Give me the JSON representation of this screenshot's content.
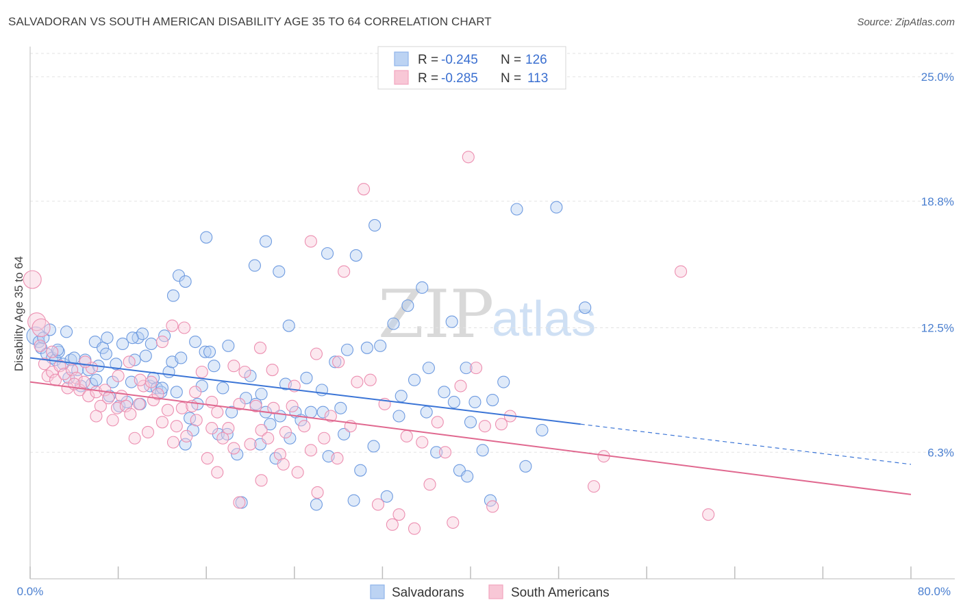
{
  "header": {
    "title": "SALVADORAN VS SOUTH AMERICAN DISABILITY AGE 35 TO 64 CORRELATION CHART",
    "source": "Source: ZipAtlas.com"
  },
  "watermark": {
    "zip": "ZIP",
    "atlas": "atlas"
  },
  "legend": {
    "rows": [
      {
        "r_label": "R =",
        "r_value": "-0.245",
        "n_label": "N =",
        "n_value": "126",
        "color": "#8fb5ea"
      },
      {
        "r_label": "R =",
        "r_value": "-0.285",
        "n_label": "N =",
        "n_value": "113",
        "color": "#f2a5bf"
      }
    ]
  },
  "bottom_legend": {
    "items": [
      {
        "label": "Salvadorans",
        "color": "#8fb5ea"
      },
      {
        "label": "South Americans",
        "color": "#f2a5bf"
      }
    ]
  },
  "chart_data": {
    "type": "scatter",
    "title": "SALVADORAN VS SOUTH AMERICAN DISABILITY AGE 35 TO 64 CORRELATION CHART",
    "xlabel": "",
    "ylabel": "Disability Age 35 to 64",
    "xlim": [
      0,
      80
    ],
    "ylim": [
      0,
      26.5
    ],
    "x_tick_labels": [
      "0.0%",
      "80.0%"
    ],
    "y_ticks": [
      6.3,
      12.5,
      18.8,
      25.0
    ],
    "y_tick_labels": [
      "6.3%",
      "12.5%",
      "18.8%",
      "25.0%"
    ],
    "grid": true,
    "colors": {
      "salvadorans": "#5b8fdc",
      "south_americans": "#e9799f",
      "blue_line": "#3a74d6",
      "pink_line": "#e0688f"
    },
    "series": [
      {
        "name": "Salvadorans",
        "r": -0.245,
        "n": 126,
        "trend": {
          "x0": 0,
          "y0": 11.0,
          "x1": 50,
          "y1": 7.7,
          "dashed_to_x": 80,
          "dashed_to_y": 5.7
        },
        "points": [
          [
            0.5,
            12.1
          ],
          [
            0.8,
            11.8
          ],
          [
            1.0,
            11.5
          ],
          [
            1.2,
            12.0
          ],
          [
            1.5,
            11.2
          ],
          [
            2.0,
            11.0
          ],
          [
            2.3,
            10.9
          ],
          [
            2.6,
            11.3
          ],
          [
            3.0,
            10.7
          ],
          [
            3.3,
            12.3
          ],
          [
            3.7,
            10.9
          ],
          [
            4.0,
            11.0
          ],
          [
            4.3,
            10.4
          ],
          [
            4.6,
            9.6
          ],
          [
            5.0,
            10.9
          ],
          [
            5.3,
            10.4
          ],
          [
            5.6,
            9.7
          ],
          [
            5.9,
            11.8
          ],
          [
            6.2,
            10.6
          ],
          [
            6.6,
            11.5
          ],
          [
            6.9,
            11.2
          ],
          [
            7.2,
            9.1
          ],
          [
            7.5,
            9.8
          ],
          [
            7.8,
            10.7
          ],
          [
            8.1,
            8.6
          ],
          [
            8.4,
            11.7
          ],
          [
            8.8,
            8.8
          ],
          [
            9.2,
            9.8
          ],
          [
            9.5,
            10.9
          ],
          [
            9.8,
            12.0
          ],
          [
            10.2,
            12.2
          ],
          [
            10.5,
            11.1
          ],
          [
            10.9,
            9.6
          ],
          [
            11.2,
            10.0
          ],
          [
            11.5,
            9.5
          ],
          [
            11.9,
            9.3
          ],
          [
            12.2,
            12.1
          ],
          [
            12.6,
            10.3
          ],
          [
            12.9,
            10.8
          ],
          [
            13.3,
            9.3
          ],
          [
            13.7,
            11.0
          ],
          [
            14.1,
            6.7
          ],
          [
            14.5,
            8.0
          ],
          [
            14.8,
            7.4
          ],
          [
            15.2,
            8.7
          ],
          [
            15.6,
            9.6
          ],
          [
            15.9,
            11.3
          ],
          [
            16.3,
            11.3
          ],
          [
            16.7,
            10.6
          ],
          [
            17.1,
            7.2
          ],
          [
            17.5,
            9.5
          ],
          [
            17.9,
            7.2
          ],
          [
            18.3,
            8.3
          ],
          [
            18.8,
            6.2
          ],
          [
            19.2,
            3.8
          ],
          [
            19.6,
            9.0
          ],
          [
            20.0,
            10.1
          ],
          [
            20.5,
            8.7
          ],
          [
            20.9,
            6.7
          ],
          [
            21.4,
            8.3
          ],
          [
            21.8,
            7.7
          ],
          [
            22.3,
            6.0
          ],
          [
            22.7,
            8.1
          ],
          [
            23.2,
            9.7
          ],
          [
            23.6,
            7.0
          ],
          [
            24.1,
            8.3
          ],
          [
            24.6,
            7.9
          ],
          [
            25.1,
            10.0
          ],
          [
            25.5,
            8.3
          ],
          [
            26.0,
            3.7
          ],
          [
            26.6,
            8.3
          ],
          [
            27.1,
            6.1
          ],
          [
            27.7,
            10.8
          ],
          [
            28.2,
            8.5
          ],
          [
            28.8,
            11.4
          ],
          [
            29.4,
            3.9
          ],
          [
            30.0,
            5.4
          ],
          [
            30.6,
            11.5
          ],
          [
            31.2,
            6.6
          ],
          [
            31.8,
            11.6
          ],
          [
            32.4,
            4.1
          ],
          [
            33.0,
            12.7
          ],
          [
            33.7,
            9.1
          ],
          [
            34.3,
            13.6
          ],
          [
            34.9,
            9.9
          ],
          [
            35.6,
            14.5
          ],
          [
            36.2,
            10.5
          ],
          [
            36.9,
            6.3
          ],
          [
            37.6,
            9.3
          ],
          [
            38.3,
            12.8
          ],
          [
            39.0,
            5.4
          ],
          [
            39.7,
            5.1
          ],
          [
            40.4,
            8.8
          ],
          [
            41.1,
            6.4
          ],
          [
            41.8,
            3.9
          ],
          [
            16.0,
            17.0
          ],
          [
            20.4,
            15.6
          ],
          [
            21.4,
            16.8
          ],
          [
            22.6,
            15.3
          ],
          [
            27.0,
            16.2
          ],
          [
            29.6,
            16.1
          ],
          [
            13.5,
            15.1
          ],
          [
            14.1,
            14.8
          ],
          [
            31.3,
            17.6
          ],
          [
            44.2,
            18.4
          ],
          [
            50.4,
            13.5
          ],
          [
            47.8,
            18.5
          ],
          [
            39.6,
            10.5
          ],
          [
            42.0,
            8.9
          ],
          [
            13.0,
            14.1
          ],
          [
            9.3,
            12.0
          ],
          [
            2.5,
            11.4
          ],
          [
            3.5,
            10.0
          ],
          [
            7.0,
            12.0
          ],
          [
            11.0,
            11.7
          ],
          [
            15.0,
            11.8
          ],
          [
            18.0,
            11.6
          ],
          [
            21.0,
            9.2
          ],
          [
            23.5,
            12.6
          ],
          [
            26.5,
            9.4
          ],
          [
            28.5,
            7.2
          ],
          [
            33.5,
            8.1
          ],
          [
            36.0,
            8.3
          ],
          [
            38.5,
            8.8
          ],
          [
            40.0,
            7.8
          ],
          [
            43.0,
            9.8
          ],
          [
            45.0,
            5.6
          ],
          [
            46.5,
            7.4
          ],
          [
            1.8,
            12.4
          ],
          [
            6.0,
            9.9
          ],
          [
            10.0,
            8.7
          ],
          [
            12.0,
            9.5
          ]
        ]
      },
      {
        "name": "South Americans",
        "r": -0.285,
        "n": 113,
        "trend": {
          "x0": 0,
          "y0": 9.8,
          "x1": 80,
          "y1": 4.2
        },
        "points": [
          [
            0.2,
            14.9
          ],
          [
            0.6,
            12.8
          ],
          [
            0.9,
            11.6
          ],
          [
            1.3,
            10.7
          ],
          [
            1.6,
            10.1
          ],
          [
            2.0,
            10.3
          ],
          [
            2.3,
            9.9
          ],
          [
            2.7,
            10.6
          ],
          [
            3.1,
            10.2
          ],
          [
            3.4,
            9.5
          ],
          [
            3.8,
            10.4
          ],
          [
            4.2,
            10.0
          ],
          [
            4.5,
            9.4
          ],
          [
            4.9,
            9.8
          ],
          [
            5.3,
            9.1
          ],
          [
            5.6,
            10.5
          ],
          [
            6.0,
            9.3
          ],
          [
            6.4,
            8.6
          ],
          [
            6.8,
            9.4
          ],
          [
            7.1,
            9.0
          ],
          [
            7.5,
            7.9
          ],
          [
            7.9,
            8.5
          ],
          [
            8.3,
            9.1
          ],
          [
            8.7,
            8.6
          ],
          [
            9.1,
            8.2
          ],
          [
            9.5,
            7.0
          ],
          [
            9.9,
            8.7
          ],
          [
            10.3,
            9.6
          ],
          [
            10.7,
            7.3
          ],
          [
            11.2,
            8.9
          ],
          [
            11.6,
            9.2
          ],
          [
            12.0,
            7.8
          ],
          [
            12.5,
            8.4
          ],
          [
            12.9,
            12.6
          ],
          [
            13.3,
            7.6
          ],
          [
            13.8,
            8.5
          ],
          [
            14.2,
            7.1
          ],
          [
            14.7,
            8.6
          ],
          [
            15.1,
            7.9
          ],
          [
            15.6,
            10.3
          ],
          [
            16.1,
            6.0
          ],
          [
            16.5,
            7.5
          ],
          [
            17.0,
            8.3
          ],
          [
            17.5,
            7.0
          ],
          [
            18.0,
            7.5
          ],
          [
            18.5,
            6.5
          ],
          [
            19.0,
            8.7
          ],
          [
            19.5,
            10.3
          ],
          [
            20.0,
            6.7
          ],
          [
            20.5,
            8.6
          ],
          [
            21.0,
            7.4
          ],
          [
            21.6,
            7.0
          ],
          [
            22.1,
            8.5
          ],
          [
            22.7,
            6.2
          ],
          [
            23.2,
            7.3
          ],
          [
            23.8,
            8.6
          ],
          [
            24.3,
            5.3
          ],
          [
            24.9,
            7.6
          ],
          [
            25.5,
            6.4
          ],
          [
            26.1,
            4.3
          ],
          [
            26.7,
            7.0
          ],
          [
            27.3,
            8.1
          ],
          [
            27.9,
            6.0
          ],
          [
            28.5,
            15.3
          ],
          [
            29.1,
            7.6
          ],
          [
            29.7,
            9.8
          ],
          [
            30.3,
            19.4
          ],
          [
            30.9,
            9.9
          ],
          [
            31.6,
            3.7
          ],
          [
            32.2,
            8.7
          ],
          [
            32.9,
            2.7
          ],
          [
            33.5,
            3.2
          ],
          [
            34.2,
            7.1
          ],
          [
            34.9,
            2.5
          ],
          [
            35.6,
            6.8
          ],
          [
            36.3,
            4.7
          ],
          [
            37.0,
            7.8
          ],
          [
            37.7,
            6.3
          ],
          [
            38.4,
            2.8
          ],
          [
            39.1,
            9.6
          ],
          [
            39.8,
            21.0
          ],
          [
            40.5,
            10.5
          ],
          [
            41.3,
            7.6
          ],
          [
            42.0,
            3.6
          ],
          [
            42.8,
            7.7
          ],
          [
            43.6,
            8.1
          ],
          [
            51.2,
            4.6
          ],
          [
            52.1,
            6.1
          ],
          [
            59.1,
            15.3
          ],
          [
            61.6,
            3.2
          ],
          [
            25.5,
            16.8
          ],
          [
            20.9,
            11.5
          ],
          [
            22.0,
            10.4
          ],
          [
            24.0,
            9.6
          ],
          [
            26.0,
            11.2
          ],
          [
            28.0,
            10.8
          ],
          [
            18.5,
            10.6
          ],
          [
            16.5,
            8.8
          ],
          [
            14.0,
            12.5
          ],
          [
            12.0,
            11.8
          ],
          [
            10.0,
            9.9
          ],
          [
            8.0,
            10.1
          ],
          [
            6.0,
            8.1
          ],
          [
            4.0,
            9.7
          ],
          [
            2.0,
            11.3
          ],
          [
            1.0,
            12.5
          ],
          [
            5.0,
            10.8
          ],
          [
            9.0,
            10.8
          ],
          [
            11.0,
            9.8
          ],
          [
            13.0,
            6.8
          ],
          [
            15.0,
            9.3
          ],
          [
            17.0,
            5.3
          ],
          [
            19.0,
            3.8
          ],
          [
            21.0,
            4.9
          ],
          [
            23.0,
            5.7
          ]
        ]
      }
    ]
  }
}
